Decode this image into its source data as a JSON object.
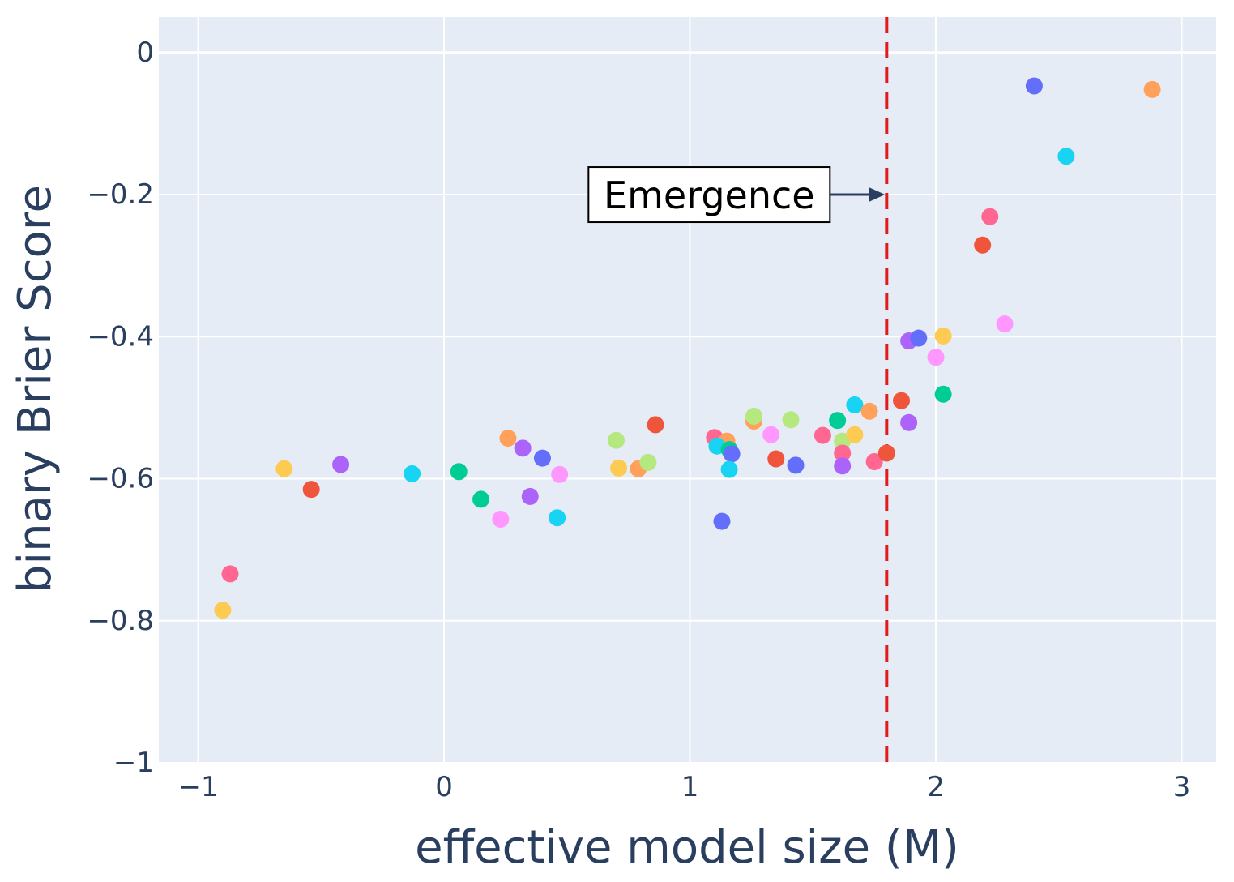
{
  "chart_data": {
    "type": "scatter",
    "title": "",
    "xlabel": "effective model size (M)",
    "ylabel": "binary Brier Score",
    "xlim": [
      -1.16,
      3.14
    ],
    "ylim": [
      -1.0,
      0.05
    ],
    "xticks": [
      -1,
      0,
      1,
      2,
      3
    ],
    "xtick_labels": [
      "−1",
      "0",
      "1",
      "2",
      "3"
    ],
    "yticks": [
      0,
      -0.2,
      -0.4,
      -0.6,
      -0.8,
      -1
    ],
    "ytick_labels": [
      "0",
      "−0.2",
      "−0.4",
      "−0.6",
      "−0.8",
      "−1"
    ],
    "grid": true,
    "plot_bg": "#e5ecf6",
    "grid_color": "#ffffff",
    "threshold": {
      "x": 1.8,
      "color": "#e31a1c",
      "style": "dashed"
    },
    "annotation": {
      "text": "Emergence",
      "arrow_to": [
        1.8,
        -0.2
      ]
    },
    "points": [
      {
        "x": -0.9,
        "y": -0.785,
        "color": "#fecb52"
      },
      {
        "x": -0.87,
        "y": -0.734,
        "color": "#ff6692"
      },
      {
        "x": -0.65,
        "y": -0.586,
        "color": "#fecb52"
      },
      {
        "x": -0.54,
        "y": -0.615,
        "color": "#ef553b"
      },
      {
        "x": -0.42,
        "y": -0.58,
        "color": "#ab63fa"
      },
      {
        "x": -0.13,
        "y": -0.593,
        "color": "#19d3f3"
      },
      {
        "x": 0.06,
        "y": -0.59,
        "color": "#00cc96"
      },
      {
        "x": 0.15,
        "y": -0.629,
        "color": "#00cc96"
      },
      {
        "x": 0.23,
        "y": -0.657,
        "color": "#ff97ff"
      },
      {
        "x": 0.26,
        "y": -0.543,
        "color": "#ffa15a"
      },
      {
        "x": 0.32,
        "y": -0.557,
        "color": "#ab63fa"
      },
      {
        "x": 0.35,
        "y": -0.625,
        "color": "#ab63fa"
      },
      {
        "x": 0.4,
        "y": -0.571,
        "color": "#636efa"
      },
      {
        "x": 0.46,
        "y": -0.655,
        "color": "#19d3f3"
      },
      {
        "x": 0.47,
        "y": -0.594,
        "color": "#ff97ff"
      },
      {
        "x": 0.7,
        "y": -0.546,
        "color": "#b6e880"
      },
      {
        "x": 0.71,
        "y": -0.585,
        "color": "#fecb52"
      },
      {
        "x": 0.79,
        "y": -0.586,
        "color": "#ffa15a"
      },
      {
        "x": 0.83,
        "y": -0.577,
        "color": "#b6e880"
      },
      {
        "x": 0.86,
        "y": -0.524,
        "color": "#ef553b"
      },
      {
        "x": 1.1,
        "y": -0.542,
        "color": "#ff6692"
      },
      {
        "x": 1.15,
        "y": -0.547,
        "color": "#ffa15a"
      },
      {
        "x": 1.11,
        "y": -0.554,
        "color": "#19d3f3"
      },
      {
        "x": 1.16,
        "y": -0.559,
        "color": "#00cc96"
      },
      {
        "x": 1.17,
        "y": -0.565,
        "color": "#636efa"
      },
      {
        "x": 1.16,
        "y": -0.587,
        "color": "#19d3f3"
      },
      {
        "x": 1.13,
        "y": -0.66,
        "color": "#636efa"
      },
      {
        "x": 1.26,
        "y": -0.519,
        "color": "#ffa15a"
      },
      {
        "x": 1.26,
        "y": -0.512,
        "color": "#b6e880"
      },
      {
        "x": 1.33,
        "y": -0.538,
        "color": "#ff97ff"
      },
      {
        "x": 1.35,
        "y": -0.572,
        "color": "#ef553b"
      },
      {
        "x": 1.41,
        "y": -0.517,
        "color": "#b6e880"
      },
      {
        "x": 1.43,
        "y": -0.581,
        "color": "#636efa"
      },
      {
        "x": 1.54,
        "y": -0.539,
        "color": "#ff6692"
      },
      {
        "x": 1.6,
        "y": -0.518,
        "color": "#00cc96"
      },
      {
        "x": 1.62,
        "y": -0.547,
        "color": "#b6e880"
      },
      {
        "x": 1.62,
        "y": -0.564,
        "color": "#ff6692"
      },
      {
        "x": 1.62,
        "y": -0.582,
        "color": "#ab63fa"
      },
      {
        "x": 1.67,
        "y": -0.538,
        "color": "#fecb52"
      },
      {
        "x": 1.67,
        "y": -0.496,
        "color": "#19d3f3"
      },
      {
        "x": 1.73,
        "y": -0.505,
        "color": "#ffa15a"
      },
      {
        "x": 1.75,
        "y": -0.576,
        "color": "#ff6692"
      },
      {
        "x": 1.8,
        "y": -0.564,
        "color": "#ef553b"
      },
      {
        "x": 1.86,
        "y": -0.49,
        "color": "#ef553b"
      },
      {
        "x": 1.89,
        "y": -0.521,
        "color": "#ab63fa"
      },
      {
        "x": 1.89,
        "y": -0.406,
        "color": "#ab63fa"
      },
      {
        "x": 1.93,
        "y": -0.402,
        "color": "#636efa"
      },
      {
        "x": 2.0,
        "y": -0.429,
        "color": "#ff97ff"
      },
      {
        "x": 2.03,
        "y": -0.399,
        "color": "#fecb52"
      },
      {
        "x": 2.03,
        "y": -0.481,
        "color": "#00cc96"
      },
      {
        "x": 2.19,
        "y": -0.271,
        "color": "#ef553b"
      },
      {
        "x": 2.22,
        "y": -0.231,
        "color": "#ff6692"
      },
      {
        "x": 2.28,
        "y": -0.382,
        "color": "#ff97ff"
      },
      {
        "x": 2.4,
        "y": -0.047,
        "color": "#636efa"
      },
      {
        "x": 2.53,
        "y": -0.146,
        "color": "#19d3f3"
      },
      {
        "x": 2.88,
        "y": -0.052,
        "color": "#ffa15a"
      }
    ]
  }
}
